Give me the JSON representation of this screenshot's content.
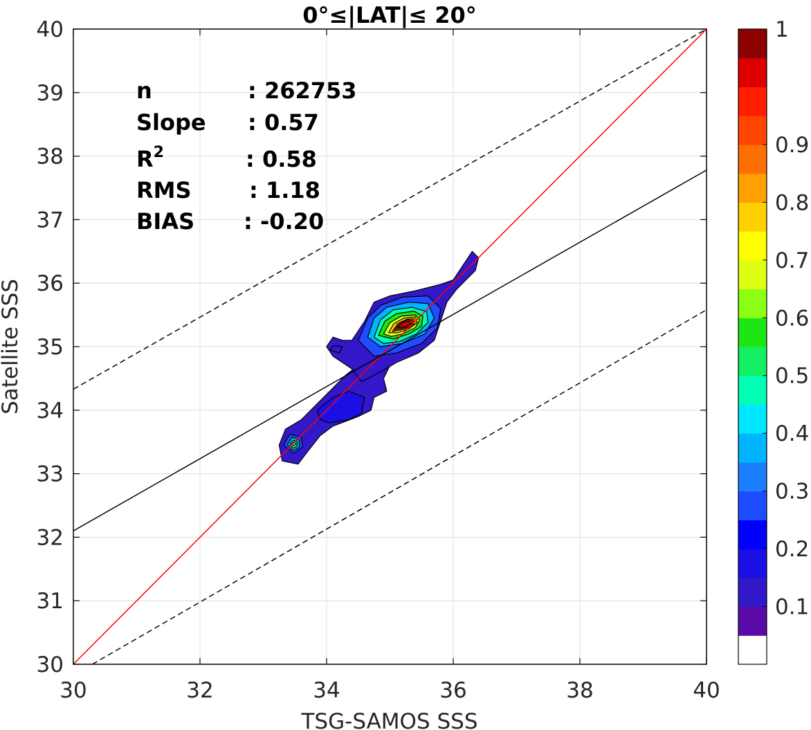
{
  "chart_data": {
    "type": "heatmap",
    "subtype": "filled-contour density scatter",
    "title": "0°≤|LAT|≤ 20°",
    "xlabel": "TSG-SAMOS SSS",
    "ylabel": "Satellite SSS",
    "xlim": [
      30,
      40
    ],
    "ylim": [
      30,
      40
    ],
    "x_ticks": [
      30,
      32,
      34,
      36,
      38,
      40
    ],
    "y_ticks": [
      30,
      31,
      32,
      33,
      34,
      35,
      36,
      37,
      38,
      39,
      40
    ],
    "grid": true,
    "stats": [
      {
        "label": "n",
        "value": ": 262753"
      },
      {
        "label": "Slope",
        "value": ": 0.57"
      },
      {
        "label": "R",
        "sup": "2",
        "value": ": 0.58"
      },
      {
        "label": "RMS",
        "value": ": 1.18"
      },
      {
        "label": "BIAS",
        "value": ": -0.20"
      }
    ],
    "lines": [
      {
        "name": "one-to-one",
        "style": "solid",
        "color": "#ff0000",
        "points": [
          [
            30,
            30
          ],
          [
            40,
            40
          ]
        ]
      },
      {
        "name": "regression",
        "style": "solid",
        "color": "#000000",
        "points": [
          [
            30,
            32.1
          ],
          [
            40,
            37.78
          ]
        ]
      },
      {
        "name": "upper-bound",
        "style": "dashed",
        "color": "#000000",
        "points": [
          [
            30,
            34.33
          ],
          [
            40,
            40
          ]
        ]
      },
      {
        "name": "lower-bound",
        "style": "dashed",
        "color": "#000000",
        "points": [
          [
            30.3,
            30
          ],
          [
            40,
            35.58
          ]
        ]
      }
    ],
    "colorbar": {
      "ticks": [
        "0.1",
        "0.2",
        "0.3",
        "0.4",
        "0.5",
        "0.6",
        "0.7",
        "0.8",
        "0.9",
        "1"
      ],
      "levels": [
        "#ffffff",
        "#5a0aa8",
        "#3218c8",
        "#1a10e6",
        "#0000ff",
        "#1f4cff",
        "#1a80ff",
        "#00b4ff",
        "#00e8ff",
        "#00ffb4",
        "#14f064",
        "#1ee614",
        "#8cff14",
        "#dcff14",
        "#ffff00",
        "#ffd000",
        "#ffa000",
        "#ff6e00",
        "#ff4600",
        "#ff1e00",
        "#dc0000",
        "#8c0000"
      ]
    },
    "contours": [
      {
        "level": 0.05,
        "color": "#3218c8",
        "points": [
          [
            33.3,
            33.2
          ],
          [
            33.25,
            33.45
          ],
          [
            33.35,
            33.7
          ],
          [
            33.6,
            33.85
          ],
          [
            33.85,
            34.1
          ],
          [
            34.1,
            34.35
          ],
          [
            34.3,
            34.55
          ],
          [
            34.55,
            34.75
          ],
          [
            34.95,
            34.8
          ],
          [
            35.0,
            34.7
          ],
          [
            34.9,
            34.5
          ],
          [
            34.95,
            34.3
          ],
          [
            34.75,
            34.2
          ],
          [
            34.7,
            34.0
          ],
          [
            34.5,
            33.9
          ],
          [
            34.1,
            33.75
          ],
          [
            33.9,
            33.6
          ],
          [
            33.7,
            33.35
          ],
          [
            33.55,
            33.15
          ]
        ],
        "closed": true
      },
      {
        "level": 0.05,
        "color": "#3218c8",
        "points": [
          [
            34.0,
            35.0
          ],
          [
            34.1,
            35.15
          ],
          [
            34.25,
            35.1
          ],
          [
            34.4,
            35.1
          ],
          [
            34.6,
            35.4
          ],
          [
            34.75,
            35.7
          ],
          [
            35.0,
            35.8
          ],
          [
            35.4,
            35.88
          ],
          [
            35.8,
            35.98
          ],
          [
            36.0,
            36.05
          ],
          [
            36.3,
            36.5
          ],
          [
            36.4,
            36.4
          ],
          [
            36.35,
            36.2
          ],
          [
            36.05,
            35.9
          ],
          [
            35.9,
            35.7
          ],
          [
            35.8,
            35.4
          ],
          [
            35.7,
            35.1
          ],
          [
            35.45,
            34.9
          ],
          [
            35.1,
            34.75
          ],
          [
            34.85,
            34.6
          ],
          [
            34.55,
            34.45
          ],
          [
            34.4,
            34.65
          ],
          [
            34.25,
            34.75
          ],
          [
            34.1,
            34.85
          ]
        ],
        "closed": true
      },
      {
        "level": 0.2,
        "color": "#1a10e6",
        "points": [
          [
            33.85,
            34.0
          ],
          [
            34.1,
            34.2
          ],
          [
            34.35,
            34.3
          ],
          [
            34.6,
            34.2
          ],
          [
            34.55,
            33.95
          ],
          [
            34.35,
            33.85
          ],
          [
            34.05,
            33.8
          ],
          [
            33.9,
            33.85
          ]
        ],
        "closed": true
      },
      {
        "level": 0.15,
        "color": "#1f4cff",
        "points": [
          [
            34.5,
            35.1
          ],
          [
            34.65,
            35.45
          ],
          [
            34.85,
            35.65
          ],
          [
            35.2,
            35.78
          ],
          [
            35.6,
            35.8
          ],
          [
            35.8,
            35.6
          ],
          [
            35.75,
            35.3
          ],
          [
            35.5,
            35.05
          ],
          [
            35.1,
            34.9
          ],
          [
            34.75,
            34.85
          ]
        ],
        "closed": true
      },
      {
        "level": 0.3,
        "color": "#00b4ff",
        "points": [
          [
            34.65,
            35.15
          ],
          [
            34.75,
            35.45
          ],
          [
            34.95,
            35.62
          ],
          [
            35.3,
            35.7
          ],
          [
            35.6,
            35.68
          ],
          [
            35.7,
            35.45
          ],
          [
            35.55,
            35.2
          ],
          [
            35.2,
            35.05
          ],
          [
            34.85,
            35.0
          ]
        ],
        "closed": true
      },
      {
        "level": 0.4,
        "color": "#00ffb4",
        "points": [
          [
            34.75,
            35.15
          ],
          [
            34.85,
            35.42
          ],
          [
            35.05,
            35.58
          ],
          [
            35.35,
            35.62
          ],
          [
            35.58,
            35.55
          ],
          [
            35.6,
            35.38
          ],
          [
            35.42,
            35.2
          ],
          [
            35.15,
            35.08
          ],
          [
            34.9,
            35.05
          ]
        ],
        "closed": true
      },
      {
        "level": 0.5,
        "color": "#1ee614",
        "points": [
          [
            34.82,
            35.18
          ],
          [
            34.92,
            35.4
          ],
          [
            35.1,
            35.52
          ],
          [
            35.38,
            35.56
          ],
          [
            35.52,
            35.48
          ],
          [
            35.5,
            35.32
          ],
          [
            35.3,
            35.2
          ],
          [
            35.05,
            35.12
          ]
        ],
        "closed": true
      },
      {
        "level": 0.6,
        "color": "#dcff14",
        "points": [
          [
            34.9,
            35.2
          ],
          [
            35.0,
            35.38
          ],
          [
            35.18,
            35.48
          ],
          [
            35.4,
            35.5
          ],
          [
            35.47,
            35.42
          ],
          [
            35.4,
            35.3
          ],
          [
            35.2,
            35.2
          ],
          [
            35.02,
            35.16
          ]
        ],
        "closed": true
      },
      {
        "level": 0.7,
        "color": "#ffd000",
        "points": [
          [
            34.98,
            35.22
          ],
          [
            35.06,
            35.36
          ],
          [
            35.22,
            35.45
          ],
          [
            35.4,
            35.47
          ],
          [
            35.43,
            35.38
          ],
          [
            35.3,
            35.28
          ],
          [
            35.12,
            35.22
          ]
        ],
        "closed": true
      },
      {
        "level": 0.8,
        "color": "#ff6e00",
        "points": [
          [
            35.04,
            35.24
          ],
          [
            35.12,
            35.36
          ],
          [
            35.26,
            35.43
          ],
          [
            35.38,
            35.44
          ],
          [
            35.38,
            35.35
          ],
          [
            35.24,
            35.28
          ]
        ],
        "closed": true
      },
      {
        "level": 0.9,
        "color": "#ff1e00",
        "points": [
          [
            35.08,
            35.27
          ],
          [
            35.16,
            35.37
          ],
          [
            35.28,
            35.42
          ],
          [
            35.36,
            35.41
          ],
          [
            35.33,
            35.33
          ],
          [
            35.2,
            35.29
          ]
        ],
        "closed": true
      },
      {
        "level": 0.95,
        "color": "#dc0000",
        "points": [
          [
            35.12,
            35.3
          ],
          [
            35.2,
            35.38
          ],
          [
            35.3,
            35.4
          ],
          [
            35.33,
            35.36
          ],
          [
            35.22,
            35.31
          ]
        ],
        "closed": true
      },
      {
        "level": 0.15,
        "color": "#1f4cff",
        "points": [
          [
            33.32,
            33.45
          ],
          [
            33.42,
            33.62
          ],
          [
            33.6,
            33.58
          ],
          [
            33.62,
            33.42
          ],
          [
            33.48,
            33.32
          ]
        ],
        "closed": true
      },
      {
        "level": 0.3,
        "color": "#00b4ff",
        "points": [
          [
            33.38,
            33.46
          ],
          [
            33.46,
            33.58
          ],
          [
            33.57,
            33.53
          ],
          [
            33.57,
            33.42
          ],
          [
            33.47,
            33.36
          ]
        ],
        "closed": true
      },
      {
        "level": 0.4,
        "color": "#00ffb4",
        "points": [
          [
            33.42,
            33.47
          ],
          [
            33.48,
            33.53
          ],
          [
            33.54,
            33.5
          ],
          [
            33.53,
            33.43
          ],
          [
            33.47,
            33.4
          ]
        ],
        "closed": true
      },
      {
        "level": 0.6,
        "color": "#aaff14",
        "points": [
          [
            33.45,
            33.47
          ],
          [
            33.49,
            33.5
          ],
          [
            33.52,
            33.47
          ],
          [
            33.48,
            33.44
          ]
        ],
        "closed": true
      },
      {
        "level": 0.1,
        "color": "#3218c8",
        "points": [
          [
            34.05,
            34.95
          ],
          [
            34.12,
            35.02
          ],
          [
            34.25,
            35.0
          ],
          [
            34.2,
            34.9
          ]
        ],
        "closed": true
      }
    ]
  }
}
